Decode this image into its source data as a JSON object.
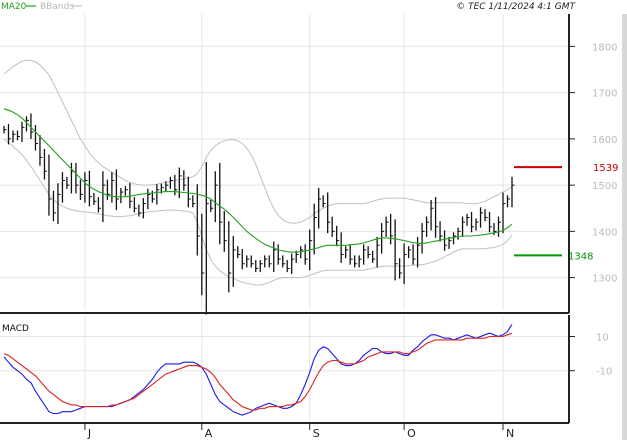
{
  "header": {
    "legend": [
      {
        "label": "MA20",
        "color": "#22a022"
      },
      {
        "label": "BBands",
        "color": "#c0c0c0"
      }
    ],
    "timestamp": "© TEC 1/11/2024 4:1 GMT"
  },
  "colors": {
    "price": "#111111",
    "ma20": "#22a022",
    "bbands": "#c0c0c0",
    "macd": "#1a1aee",
    "signal": "#dd2222",
    "resistance": "#cc0000",
    "support": "#009900",
    "grid": "#e4e4e4"
  },
  "chart_data": [
    {
      "type": "line",
      "title": "",
      "ylim": [
        1230,
        1870
      ],
      "yticks": [
        1300,
        1400,
        1500,
        1600,
        1700,
        1800
      ],
      "xticks": [
        "J",
        "A",
        "S",
        "O",
        "N"
      ],
      "xtick_positions": [
        18,
        44,
        68,
        89,
        111
      ],
      "close": [
        1620,
        1600,
        1610,
        1605,
        1625,
        1640,
        1615,
        1590,
        1560,
        1530,
        1470,
        1440,
        1480,
        1510,
        1500,
        1530,
        1500,
        1480,
        1510,
        1475,
        1465,
        1450,
        1500,
        1480,
        1510,
        1470,
        1485,
        1490,
        1465,
        1450,
        1440,
        1460,
        1480,
        1470,
        1490,
        1495,
        1500,
        1510,
        1490,
        1520,
        1500,
        1470,
        1460,
        1390,
        1310,
        1460,
        1450,
        1500,
        1420,
        1380,
        1310,
        1360,
        1350,
        1330,
        1340,
        1330,
        1320,
        1330,
        1340,
        1330,
        1360,
        1340,
        1330,
        1320,
        1340,
        1350,
        1360,
        1340,
        1380,
        1430,
        1470,
        1460,
        1420,
        1400,
        1380,
        1350,
        1360,
        1340,
        1330,
        1340,
        1360,
        1350,
        1340,
        1370,
        1400,
        1420,
        1390,
        1330,
        1310,
        1350,
        1360,
        1340,
        1370,
        1400,
        1420,
        1450,
        1410,
        1390,
        1370,
        1380,
        1390,
        1400,
        1420,
        1430,
        1410,
        1420,
        1440,
        1430,
        1410,
        1400,
        1420,
        1460,
        1470,
        1500
      ],
      "ma20": [
        1665,
        1662,
        1658,
        1652,
        1645,
        1635,
        1625,
        1615,
        1605,
        1595,
        1585,
        1575,
        1565,
        1555,
        1545,
        1535,
        1525,
        1515,
        1505,
        1497,
        1491,
        1486,
        1482,
        1478,
        1476,
        1475,
        1475,
        1475,
        1476,
        1478,
        1480,
        1481,
        1482,
        1483,
        1484,
        1485,
        1486,
        1486,
        1486,
        1485,
        1484,
        1483,
        1482,
        1480,
        1478,
        1475,
        1470,
        1462,
        1455,
        1448,
        1440,
        1430,
        1420,
        1410,
        1400,
        1392,
        1385,
        1378,
        1372,
        1368,
        1364,
        1360,
        1358,
        1356,
        1355,
        1355,
        1356,
        1358,
        1360,
        1362,
        1365,
        1368,
        1370,
        1370,
        1370,
        1370,
        1370,
        1371,
        1372,
        1373,
        1375,
        1378,
        1381,
        1384,
        1386,
        1386,
        1385,
        1384,
        1382,
        1380,
        1378,
        1376,
        1374,
        1374,
        1375,
        1377,
        1379,
        1381,
        1383,
        1385,
        1387,
        1389,
        1390,
        1390,
        1390,
        1391,
        1392,
        1393,
        1395,
        1397,
        1399,
        1402,
        1408,
        1416
      ],
      "bb_upper": [
        1740,
        1748,
        1756,
        1762,
        1768,
        1770,
        1770,
        1766,
        1760,
        1750,
        1738,
        1720,
        1700,
        1680,
        1660,
        1640,
        1620,
        1600,
        1585,
        1570,
        1558,
        1548,
        1540,
        1534,
        1528,
        1522,
        1516,
        1510,
        1506,
        1503,
        1501,
        1500,
        1500,
        1501,
        1502,
        1504,
        1506,
        1508,
        1510,
        1512,
        1514,
        1516,
        1518,
        1525,
        1540,
        1560,
        1575,
        1585,
        1592,
        1596,
        1598,
        1598,
        1596,
        1590,
        1580,
        1565,
        1545,
        1520,
        1495,
        1470,
        1450,
        1435,
        1425,
        1420,
        1418,
        1418,
        1420,
        1425,
        1430,
        1438,
        1445,
        1450,
        1455,
        1458,
        1460,
        1460,
        1460,
        1460,
        1460,
        1460,
        1460,
        1462,
        1465,
        1468,
        1470,
        1472,
        1472,
        1472,
        1472,
        1472,
        1470,
        1468,
        1466,
        1464,
        1462,
        1462,
        1462,
        1462,
        1462,
        1462,
        1462,
        1462,
        1462,
        1460,
        1460,
        1460,
        1462,
        1465,
        1470,
        1475,
        1480,
        1485,
        1490,
        1497
      ],
      "bb_lower": [
        1600,
        1592,
        1584,
        1575,
        1566,
        1554,
        1540,
        1525,
        1510,
        1495,
        1480,
        1468,
        1460,
        1455,
        1450,
        1447,
        1445,
        1443,
        1442,
        1441,
        1440,
        1438,
        1436,
        1434,
        1433,
        1432,
        1432,
        1433,
        1434,
        1436,
        1438,
        1440,
        1442,
        1443,
        1444,
        1445,
        1446,
        1446,
        1446,
        1445,
        1444,
        1443,
        1440,
        1420,
        1390,
        1360,
        1340,
        1325,
        1315,
        1308,
        1302,
        1298,
        1294,
        1290,
        1288,
        1286,
        1284,
        1284,
        1286,
        1290,
        1294,
        1298,
        1300,
        1300,
        1300,
        1300,
        1300,
        1302,
        1305,
        1308,
        1312,
        1315,
        1316,
        1316,
        1316,
        1316,
        1316,
        1316,
        1316,
        1316,
        1316,
        1318,
        1320,
        1322,
        1324,
        1325,
        1325,
        1325,
        1325,
        1325,
        1326,
        1327,
        1328,
        1328,
        1330,
        1333,
        1336,
        1340,
        1345,
        1350,
        1355,
        1360,
        1362,
        1362,
        1362,
        1362,
        1362,
        1363,
        1364,
        1365,
        1368,
        1372,
        1380,
        1392
      ],
      "levels": [
        {
          "label": "1539",
          "value": 1539,
          "color": "#cc0000"
        },
        {
          "label": "1348",
          "value": 1348,
          "color": "#009900"
        }
      ]
    },
    {
      "type": "line",
      "title": "MACD",
      "ylim": [
        -40,
        22
      ],
      "yticks": [
        10,
        -10
      ],
      "ytick_labels": [
        "10",
        "-10"
      ],
      "series": [
        {
          "name": "",
          "values": [
            -2,
            -5,
            -8,
            -10,
            -12,
            -15,
            -17,
            -22,
            -26,
            -30,
            -34,
            -35,
            -35,
            -34,
            -34,
            -34,
            -33,
            -32,
            -31,
            -31,
            -31,
            -31,
            -31,
            -31,
            -31,
            -30,
            -29,
            -28,
            -27,
            -25,
            -23,
            -21,
            -18,
            -15,
            -11,
            -8,
            -6,
            -6,
            -6,
            -6,
            -5,
            -5,
            -5,
            -6,
            -8,
            -12,
            -18,
            -24,
            -28,
            -30,
            -32,
            -34,
            -35,
            -36,
            -35,
            -34,
            -32,
            -31,
            -30,
            -29,
            -30,
            -31,
            -32,
            -32,
            -31,
            -29,
            -24,
            -18,
            -11,
            -3,
            2,
            4,
            3,
            0,
            -3,
            -6,
            -7,
            -7,
            -6,
            -4,
            -1,
            1,
            3,
            3,
            1,
            0,
            0,
            1,
            0,
            -1,
            -1,
            2,
            4,
            7,
            9,
            11,
            11,
            10,
            9,
            9,
            8,
            9,
            10,
            11,
            10,
            9,
            10,
            11,
            12,
            11,
            10,
            11,
            13,
            17
          ]
        },
        {
          "name": "",
          "values": [
            0,
            -1,
            -3,
            -5,
            -7,
            -9,
            -11,
            -13,
            -16,
            -19,
            -22,
            -24,
            -26,
            -28,
            -29,
            -30,
            -30,
            -31,
            -31,
            -31,
            -31,
            -31,
            -31,
            -31,
            -30,
            -30,
            -29,
            -28,
            -27,
            -26,
            -24,
            -22,
            -20,
            -18,
            -16,
            -14,
            -12,
            -11,
            -10,
            -9,
            -8,
            -7,
            -7,
            -7,
            -8,
            -9,
            -11,
            -14,
            -18,
            -21,
            -24,
            -27,
            -29,
            -31,
            -32,
            -33,
            -33,
            -32,
            -32,
            -31,
            -31,
            -31,
            -31,
            -30,
            -30,
            -29,
            -28,
            -25,
            -21,
            -16,
            -11,
            -7,
            -5,
            -4,
            -4,
            -5,
            -6,
            -6,
            -6,
            -5,
            -4,
            -2,
            -1,
            0,
            1,
            1,
            1,
            1,
            1,
            0,
            0,
            1,
            2,
            4,
            6,
            7,
            8,
            8,
            8,
            8,
            8,
            8,
            8,
            9,
            9,
            9,
            9,
            9,
            10,
            10,
            10,
            10,
            11,
            12
          ]
        }
      ]
    }
  ]
}
